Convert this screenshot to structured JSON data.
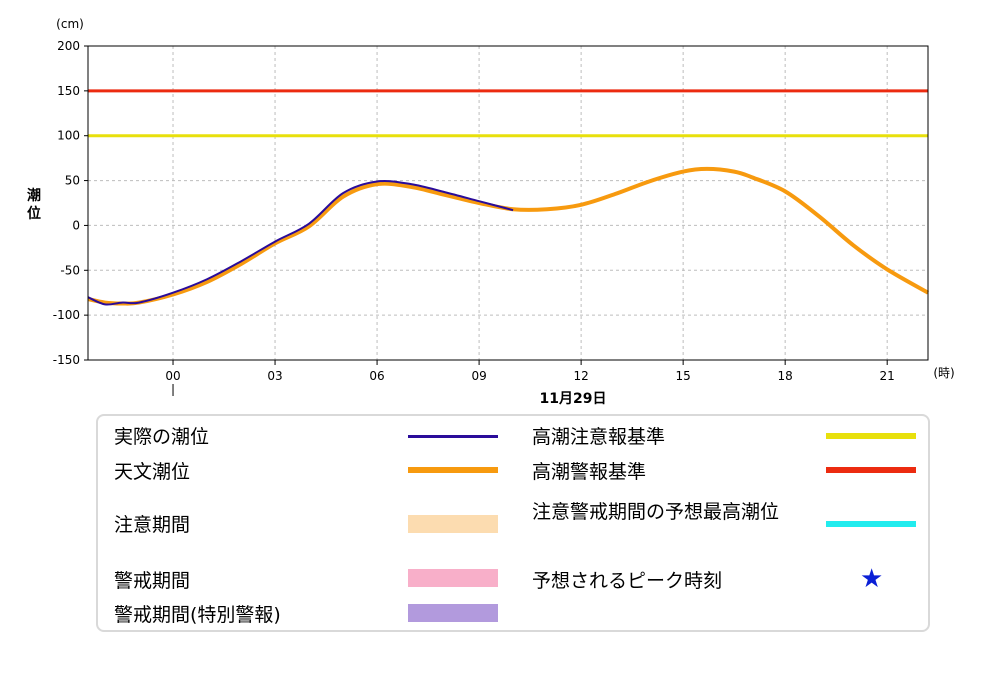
{
  "chart_data": {
    "type": "line",
    "ylabel": "潮位",
    "y_unit": "(cm)",
    "x_unit": "(時)",
    "date_label": "11月29日",
    "ylim": [
      -150,
      200
    ],
    "y_ticks": [
      200,
      150,
      100,
      50,
      0,
      -50,
      -100,
      -150
    ],
    "x_range_hours": [
      -2.5,
      22.2
    ],
    "x_ticks": [
      {
        "hour": 0,
        "label": "00"
      },
      {
        "hour": 3,
        "label": "03"
      },
      {
        "hour": 6,
        "label": "06"
      },
      {
        "hour": 9,
        "label": "09"
      },
      {
        "hour": 12,
        "label": "12"
      },
      {
        "hour": 15,
        "label": "15"
      },
      {
        "hour": 18,
        "label": "18"
      },
      {
        "hour": 21,
        "label": "21"
      }
    ],
    "grid": true,
    "series": [
      {
        "name": "天文潮位",
        "color": "#f79a0f",
        "x": [
          -2.5,
          -2,
          -1.5,
          -1,
          0,
          1,
          2,
          3,
          4,
          5,
          6,
          7,
          8,
          9,
          10,
          11,
          12,
          13,
          14,
          15,
          15.7,
          16.5,
          17,
          18,
          19,
          20,
          21,
          22.2
        ],
        "y": [
          -82,
          -86,
          -87,
          -86,
          -77,
          -63,
          -43,
          -20,
          -1,
          32,
          46,
          43,
          34,
          25,
          18,
          18,
          23,
          35,
          49,
          60,
          63,
          60,
          54,
          38,
          10,
          -22,
          -49,
          -75
        ]
      },
      {
        "name": "実際の潮位",
        "color": "#2a0c9a",
        "x": [
          -2.5,
          -2,
          -1.5,
          -1,
          0,
          1,
          2,
          3,
          4,
          5,
          6,
          7,
          8,
          9,
          10
        ],
        "y": [
          -80,
          -88,
          -86,
          -86,
          -75,
          -60,
          -40,
          -18,
          2,
          36,
          49,
          46,
          37,
          27,
          17
        ]
      }
    ],
    "reference_lines": [
      {
        "name": "高潮注意報基準",
        "value": 100,
        "color": "#e8e00c"
      },
      {
        "name": "高潮警報基準",
        "value": 150,
        "color": "#ec2b10"
      }
    ]
  },
  "legend": {
    "items": [
      {
        "label": "実際の潮位",
        "color": "#2a0c9a",
        "kind": "line"
      },
      {
        "label": "天文潮位",
        "color": "#f79a0f",
        "kind": "thick"
      },
      {
        "label": "注意期間",
        "color": "#fcdcb0",
        "kind": "band"
      },
      {
        "label": "警戒期間",
        "color": "#f8afc9",
        "kind": "band"
      },
      {
        "label": "警戒期間(特別警報)",
        "color": "#b29add",
        "kind": "band"
      },
      {
        "label": "高潮注意報基準",
        "color": "#e8e00c",
        "kind": "thick"
      },
      {
        "label": "高潮警報基準",
        "color": "#ec2b10",
        "kind": "thick"
      },
      {
        "label": "注意警戒期間の予想最高潮位",
        "color": "#22ecee",
        "kind": "thick"
      },
      {
        "label": "予想されるピーク時刻",
        "color": "#0a1fd6",
        "kind": "star",
        "icon": "star-icon"
      }
    ]
  }
}
